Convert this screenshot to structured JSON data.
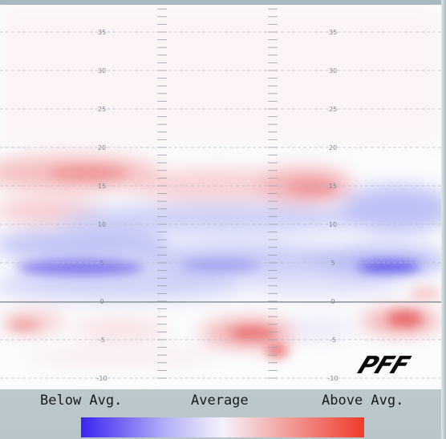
{
  "heatmap": {
    "yard_ticks": [
      35,
      30,
      25,
      20,
      15,
      10,
      5,
      0,
      -5,
      -10
    ],
    "yard_range": [
      -11,
      38
    ],
    "logo_text": "PFF",
    "colors": {
      "below": "#3a24f2",
      "average": "#f4f2fb",
      "above": "#ee3a2b"
    }
  },
  "legend": {
    "below_label": "Below Avg.",
    "average_label": "Average",
    "above_label": "Above Avg."
  }
}
